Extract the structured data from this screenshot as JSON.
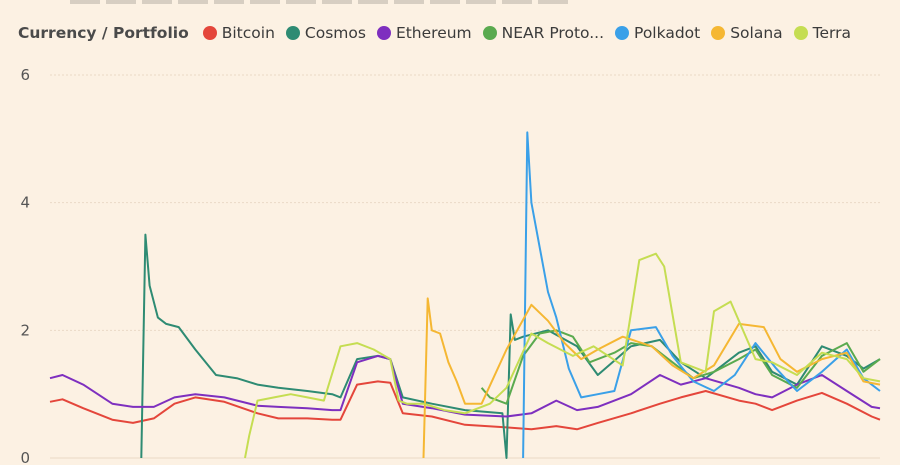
{
  "legend": {
    "title": "Currency / Portfolio",
    "items": [
      {
        "label": "Bitcoin",
        "color": "#e4463b"
      },
      {
        "label": "Cosmos",
        "color": "#2e8b73"
      },
      {
        "label": "Ethereum",
        "color": "#7e2fbf"
      },
      {
        "label": "NEAR Proto...",
        "color": "#5aaa4f"
      },
      {
        "label": "Polkadot",
        "color": "#3aa0e8"
      },
      {
        "label": "Solana",
        "color": "#f5b733"
      },
      {
        "label": "Terra",
        "color": "#c5dd52"
      }
    ]
  },
  "chart_data": {
    "type": "line",
    "ylim": [
      0,
      6
    ],
    "yticks": [
      "0",
      "2",
      "4",
      "6"
    ],
    "grid": true,
    "legend_position": "top",
    "series": [
      {
        "name": "Bitcoin",
        "color": "#e4463b",
        "x": [
          0,
          3,
          8,
          15,
          20,
          25,
          30,
          35,
          42,
          50,
          55,
          62,
          68,
          70,
          74,
          79,
          82,
          85,
          92,
          100,
          110,
          116,
          122,
          127,
          132,
          140,
          147,
          152,
          158,
          166,
          170,
          174,
          180,
          186,
          192,
          198,
          200
        ],
        "y": [
          0.88,
          0.92,
          0.78,
          0.6,
          0.55,
          0.62,
          0.85,
          0.95,
          0.88,
          0.7,
          0.62,
          0.62,
          0.6,
          0.6,
          1.15,
          1.2,
          1.18,
          0.7,
          0.65,
          0.52,
          0.48,
          0.45,
          0.5,
          0.45,
          0.55,
          0.7,
          0.85,
          0.95,
          1.05,
          0.9,
          0.85,
          0.75,
          0.9,
          1.02,
          0.85,
          0.65,
          0.6
        ]
      },
      {
        "name": "Cosmos",
        "color": "#2e8b73",
        "x": [
          22,
          23,
          24,
          26,
          28,
          31,
          35,
          40,
          45,
          50,
          55,
          62,
          68,
          70,
          74,
          79,
          82,
          85,
          92,
          100,
          109,
          110,
          111,
          112,
          114,
          120,
          127,
          132,
          140,
          147,
          152,
          158,
          166,
          170,
          174,
          180,
          186,
          192,
          196,
          200
        ],
        "y": [
          0.0,
          3.5,
          2.7,
          2.2,
          2.1,
          2.05,
          1.7,
          1.3,
          1.25,
          1.15,
          1.1,
          1.05,
          1.0,
          0.95,
          1.55,
          1.6,
          1.55,
          0.95,
          0.85,
          0.75,
          0.7,
          0.0,
          2.25,
          1.85,
          1.9,
          2.0,
          1.75,
          1.3,
          1.75,
          1.85,
          1.5,
          1.25,
          1.65,
          1.75,
          1.35,
          1.15,
          1.75,
          1.6,
          1.4,
          1.55
        ]
      },
      {
        "name": "Ethereum",
        "color": "#7e2fbf",
        "x": [
          0,
          3,
          8,
          15,
          20,
          25,
          30,
          35,
          42,
          50,
          55,
          62,
          68,
          70,
          74,
          79,
          82,
          85,
          92,
          100,
          110,
          116,
          122,
          127,
          132,
          140,
          147,
          152,
          158,
          166,
          170,
          174,
          180,
          186,
          192,
          198,
          200
        ],
        "y": [
          1.25,
          1.3,
          1.15,
          0.85,
          0.8,
          0.8,
          0.95,
          1.0,
          0.95,
          0.82,
          0.8,
          0.78,
          0.75,
          0.75,
          1.5,
          1.6,
          1.55,
          0.85,
          0.78,
          0.68,
          0.65,
          0.7,
          0.9,
          0.75,
          0.8,
          1.0,
          1.3,
          1.15,
          1.25,
          1.1,
          1.0,
          0.95,
          1.15,
          1.3,
          1.05,
          0.8,
          0.78
        ]
      },
      {
        "name": "NEAR Proto...",
        "color": "#5aaa4f",
        "x": [
          104,
          106,
          110,
          114,
          118,
          122,
          126,
          130,
          136,
          140,
          145,
          150,
          155,
          160,
          166,
          170,
          174,
          180,
          186,
          192,
          196,
          198,
          200
        ],
        "y": [
          1.1,
          0.95,
          0.85,
          1.6,
          1.95,
          2.0,
          1.9,
          1.5,
          1.65,
          1.8,
          1.75,
          1.5,
          1.25,
          1.35,
          1.55,
          1.7,
          1.3,
          1.1,
          1.6,
          1.8,
          1.35,
          1.45,
          1.55
        ]
      },
      {
        "name": "Polkadot",
        "color": "#3aa0e8",
        "x": [
          114,
          115,
          116,
          118,
          120,
          122,
          125,
          128,
          132,
          136,
          140,
          146,
          150,
          155,
          160,
          165,
          170,
          175,
          180,
          186,
          192,
          196,
          200
        ],
        "y": [
          0.0,
          5.1,
          4.0,
          3.3,
          2.6,
          2.2,
          1.4,
          0.95,
          1.0,
          1.05,
          2.0,
          2.05,
          1.6,
          1.2,
          1.05,
          1.3,
          1.8,
          1.4,
          1.05,
          1.35,
          1.7,
          1.25,
          1.05
        ]
      },
      {
        "name": "Solana",
        "color": "#f5b733",
        "x": [
          90,
          91,
          92,
          94,
          96,
          98,
          100,
          104,
          110,
          116,
          120,
          124,
          128,
          132,
          138,
          145,
          150,
          155,
          160,
          166,
          172,
          176,
          180,
          186,
          192,
          196,
          200
        ],
        "y": [
          0.0,
          2.5,
          2.0,
          1.95,
          1.5,
          1.2,
          0.85,
          0.85,
          1.7,
          2.4,
          2.15,
          1.8,
          1.55,
          1.7,
          1.9,
          1.75,
          1.45,
          1.25,
          1.45,
          2.1,
          2.05,
          1.55,
          1.35,
          1.55,
          1.65,
          1.2,
          1.15
        ]
      },
      {
        "name": "Terra",
        "color": "#c5dd52",
        "x": [
          47,
          48,
          50,
          54,
          58,
          62,
          66,
          70,
          74,
          78,
          82,
          84,
          86,
          90,
          95,
          100,
          106,
          110,
          116,
          120,
          126,
          131,
          138,
          142,
          146,
          148,
          152,
          158,
          160,
          164,
          170,
          174,
          180,
          186,
          192,
          196,
          200
        ],
        "y": [
          0.0,
          0.35,
          0.9,
          0.95,
          1.0,
          0.95,
          0.9,
          1.75,
          1.8,
          1.7,
          1.55,
          0.9,
          0.85,
          0.85,
          0.75,
          0.7,
          0.85,
          1.1,
          1.95,
          1.8,
          1.6,
          1.75,
          1.45,
          3.1,
          3.2,
          3.0,
          1.5,
          1.35,
          2.3,
          2.45,
          1.55,
          1.5,
          1.3,
          1.65,
          1.55,
          1.25,
          1.2
        ]
      }
    ]
  }
}
